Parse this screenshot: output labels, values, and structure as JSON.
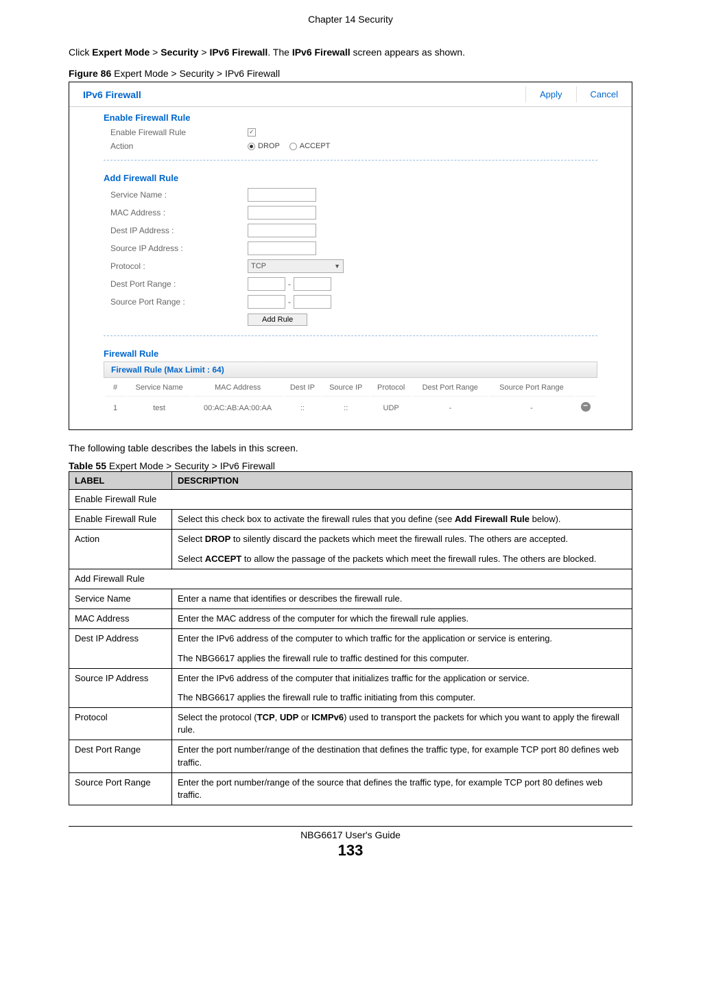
{
  "chapter_header": "Chapter 14 Security",
  "intro": {
    "prefix": "Click ",
    "b1": "Expert Mode",
    "sep1": " > ",
    "b2": "Security",
    "sep2": " > ",
    "b3": "IPv6 Firewall",
    "mid": ". The ",
    "b4": "IPv6 Firewall",
    "suffix": " screen appears as shown."
  },
  "figure": {
    "label": "Figure 86",
    "caption": "   Expert Mode > Security > IPv6 Firewall"
  },
  "screenshot": {
    "title": "IPv6 Firewall",
    "apply": "Apply",
    "cancel": "Cancel",
    "section1": "Enable Firewall Rule",
    "enable_label": "Enable Firewall Rule",
    "action_label": "Action",
    "drop": "DROP",
    "accept": "ACCEPT",
    "section2": "Add Firewall Rule",
    "service_name": "Service Name :",
    "mac_address": "MAC Address :",
    "dest_ip": "Dest IP Address :",
    "source_ip": "Source IP Address :",
    "protocol": "Protocol :",
    "protocol_value": "TCP",
    "dest_port": "Dest Port Range :",
    "source_port": "Source Port Range :",
    "add_rule": "Add Rule",
    "section3": "Firewall Rule",
    "rule_header": "Firewall Rule (Max Limit : 64)",
    "cols": {
      "num": "#",
      "service": "Service Name",
      "mac": "MAC Address",
      "destip": "Dest IP",
      "srcip": "Source IP",
      "proto": "Protocol",
      "destport": "Dest Port Range",
      "srcport": "Source Port Range"
    },
    "row": {
      "num": "1",
      "service": "test",
      "mac": "00:AC:AB:AA:00:AA",
      "destip": "::",
      "srcip": "::",
      "proto": "UDP",
      "destport": "-",
      "srcport": "-"
    }
  },
  "desc_intro": "The following table describes the labels in this screen.",
  "table_caption": {
    "label": "Table 55",
    "caption": "   Expert Mode > Security > IPv6 Firewall"
  },
  "desc_table": {
    "col1": "LABEL",
    "col2": "DESCRIPTION",
    "rows": [
      {
        "type": "section",
        "text": "Enable Firewall Rule"
      },
      {
        "label": "Enable Firewall Rule",
        "desc": [
          {
            "t": "Select this check box to activate the firewall rules that you define (see "
          },
          {
            "b": "Add Firewall Rule"
          },
          {
            "t": " below)."
          }
        ]
      },
      {
        "label": "Action",
        "desc": [
          {
            "t": "Select "
          },
          {
            "b": "DROP"
          },
          {
            "t": " to silently discard the packets which meet the firewall rules. The others are accepted."
          }
        ],
        "desc2": [
          {
            "t": "Select "
          },
          {
            "b": "ACCEPT"
          },
          {
            "t": " to allow the passage of the packets which meet the firewall rules. The others are blocked."
          }
        ]
      },
      {
        "type": "section",
        "text": "Add Firewall Rule"
      },
      {
        "label": "Service Name",
        "desc": [
          {
            "t": "Enter a name that identifies or describes the firewall rule."
          }
        ]
      },
      {
        "label": "MAC Address",
        "desc": [
          {
            "t": "Enter the MAC address of the computer for which the firewall rule applies."
          }
        ]
      },
      {
        "label": "Dest IP Address",
        "desc": [
          {
            "t": "Enter the IPv6 address of the computer to which traffic for the application or service is entering."
          }
        ],
        "desc2": [
          {
            "t": "The NBG6617 applies the firewall rule to traffic destined for this computer."
          }
        ]
      },
      {
        "label": "Source IP Address",
        "desc": [
          {
            "t": "Enter the IPv6 address of the computer that initializes traffic for the application or service."
          }
        ],
        "desc2": [
          {
            "t": "The NBG6617 applies the firewall rule to traffic initiating from this computer."
          }
        ]
      },
      {
        "label": "Protocol",
        "desc": [
          {
            "t": "Select the protocol ("
          },
          {
            "b": "TCP"
          },
          {
            "t": ", "
          },
          {
            "b": "UDP"
          },
          {
            "t": " or "
          },
          {
            "b": "ICMPv6"
          },
          {
            "t": ") used to transport the packets for which you want to apply the firewall rule."
          }
        ]
      },
      {
        "label": "Dest Port Range",
        "desc": [
          {
            "t": "Enter the port number/range of the destination that defines the traffic type, for example TCP port 80 defines web traffic."
          }
        ]
      },
      {
        "label": "Source Port Range",
        "desc": [
          {
            "t": "Enter the port number/range of the source that defines the traffic type, for example TCP port 80 defines web traffic."
          }
        ]
      }
    ]
  },
  "footer": {
    "guide": "NBG6617 User's Guide",
    "page": "133"
  }
}
